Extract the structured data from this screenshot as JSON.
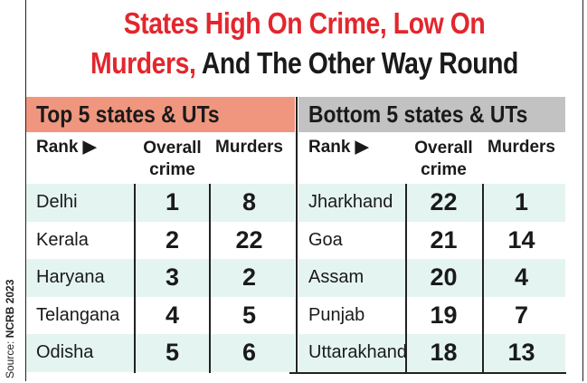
{
  "title": {
    "line1_red": "States High On Crime, Low On",
    "line2_red": "Murders,",
    "line2_black": " And The Other Way Round"
  },
  "source": {
    "label": "Source:",
    "value": "NCRB 2023"
  },
  "colors": {
    "title_red": "#e3262d",
    "top_band": "#f0967f",
    "bottom_band": "#c2c2c2",
    "row_shade": "#e4f4f1"
  },
  "headers": {
    "rank": "Rank ▶",
    "overall": "Overall crime",
    "murders": "Murders"
  },
  "top": {
    "label": "Top 5 states & UTs",
    "rows": [
      {
        "state": "Delhi",
        "overall": "1",
        "murders": "8"
      },
      {
        "state": "Kerala",
        "overall": "2",
        "murders": "22"
      },
      {
        "state": "Haryana",
        "overall": "3",
        "murders": "2"
      },
      {
        "state": "Telangana",
        "overall": "4",
        "murders": "5"
      },
      {
        "state": "Odisha",
        "overall": "5",
        "murders": "6"
      }
    ]
  },
  "bottom": {
    "label": "Bottom 5 states & UTs",
    "rows": [
      {
        "state": "Jharkhand",
        "overall": "22",
        "murders": "1"
      },
      {
        "state": "Goa",
        "overall": "21",
        "murders": "14"
      },
      {
        "state": "Assam",
        "overall": "20",
        "murders": "4"
      },
      {
        "state": "Punjab",
        "overall": "19",
        "murders": "7"
      },
      {
        "state": "Uttarakhand",
        "overall": "18",
        "murders": "13"
      }
    ]
  }
}
